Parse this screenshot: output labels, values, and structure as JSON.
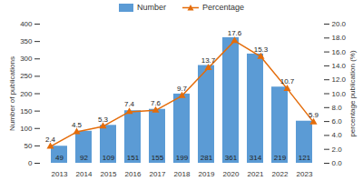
{
  "chart_data": {
    "type": "bar",
    "categories": [
      "2013",
      "2014",
      "2015",
      "2016",
      "2017",
      "2018",
      "2019",
      "2020",
      "2021",
      "2022",
      "2023"
    ],
    "series": [
      {
        "name": "Number",
        "type": "bar",
        "color": "#5b9bd5",
        "values": [
          49,
          92,
          109,
          151,
          155,
          199,
          281,
          361,
          314,
          219,
          121
        ]
      },
      {
        "name": "Percentage",
        "type": "line",
        "axis": "y2",
        "color": "#e46c0a",
        "marker": "triangle",
        "values": [
          2.4,
          4.5,
          5.3,
          7.4,
          7.6,
          9.7,
          13.7,
          17.6,
          15.3,
          10.7,
          5.9
        ]
      }
    ],
    "ylabel": "Number of publications",
    "y2label": "percentage publication (%)",
    "ylim": [
      0,
      400
    ],
    "yticks": [
      0,
      50,
      100,
      150,
      200,
      250,
      300,
      350,
      400
    ],
    "y2lim": [
      0,
      20
    ],
    "y2ticks": [
      {
        "value": 0,
        "label": "0.0"
      },
      {
        "value": 2,
        "label": "2.0"
      },
      {
        "value": 4,
        "label": "4.0"
      },
      {
        "value": 6,
        "label": "6.0"
      },
      {
        "value": 8,
        "label": "8.0"
      },
      {
        "value": 10,
        "label": "10.0"
      },
      {
        "value": 12,
        "label": "12.0"
      },
      {
        "value": 14,
        "label": "14.0"
      },
      {
        "value": 16,
        "label": "16.0"
      },
      {
        "value": 18,
        "label": "18.0"
      },
      {
        "value": 20,
        "label": "20.0"
      }
    ],
    "data_labels": true,
    "legend": "top",
    "grid": false
  }
}
